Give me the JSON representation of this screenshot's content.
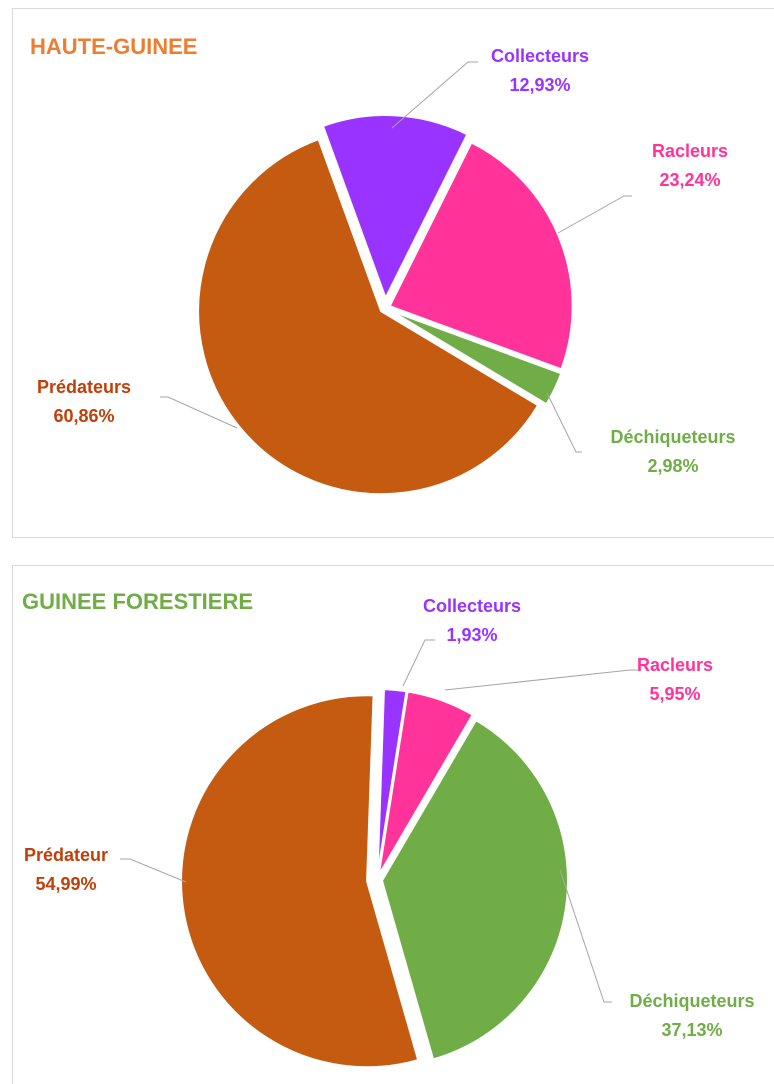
{
  "chart_data": [
    {
      "type": "pie",
      "title": "HAUTE-GUINEE",
      "categories": [
        "Collecteurs",
        "Racleurs",
        "Déchiqueteurs",
        "Prédateurs"
      ],
      "values": [
        12.93,
        23.24,
        2.98,
        60.86
      ],
      "value_labels": [
        "12,93%",
        "23,24%",
        "2,98%",
        "60,86%"
      ],
      "colors": [
        "#9933ff",
        "#ff3399",
        "#70ad47",
        "#c55a11"
      ],
      "title_color": "#ed7d31"
    },
    {
      "type": "pie",
      "title": "GUINEE FORESTIERE",
      "categories": [
        "Collecteurs",
        "Racleurs",
        "Déchiqueteurs",
        "Prédateur"
      ],
      "values": [
        1.93,
        5.95,
        37.13,
        54.99
      ],
      "value_labels": [
        "1,93%",
        "5,95%",
        "37,13%",
        "54,99%"
      ],
      "colors": [
        "#9933ff",
        "#ff3399",
        "#70ad47",
        "#c55a11"
      ],
      "title_color": "#70ad47"
    }
  ]
}
